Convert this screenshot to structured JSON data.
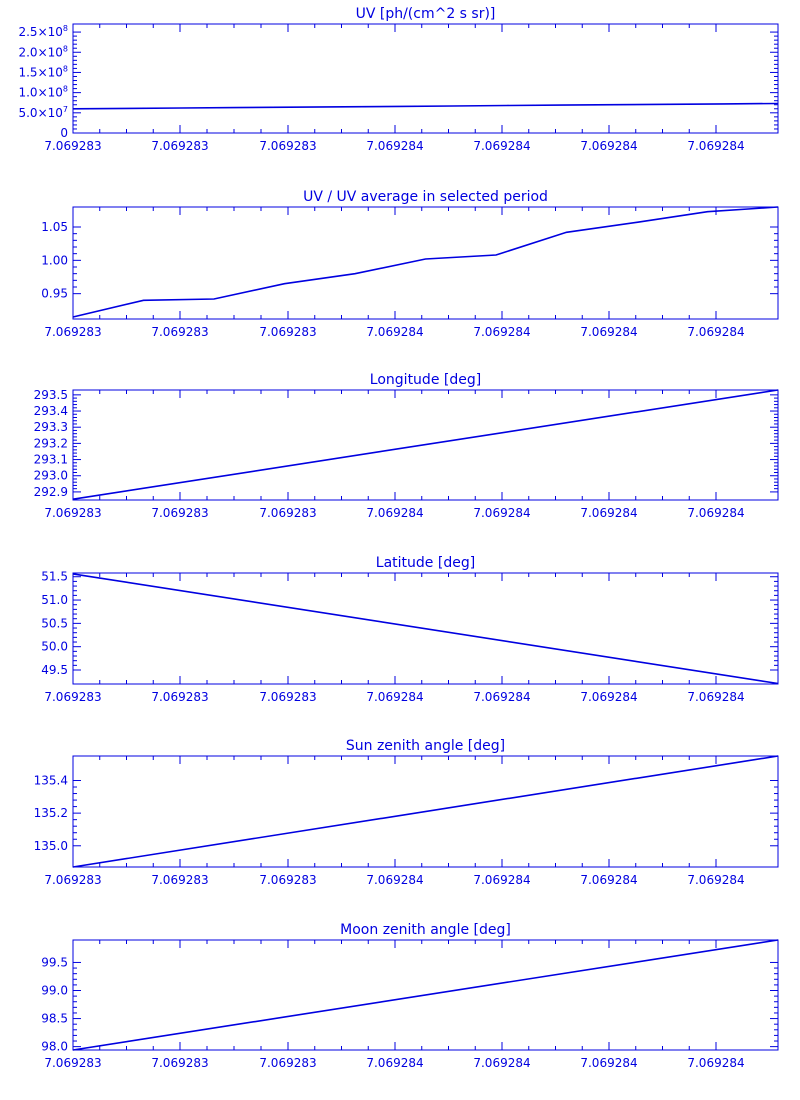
{
  "style": {
    "color": "#0000e0",
    "background": "#ffffff"
  },
  "chart_data": [
    {
      "type": "line",
      "title": "UV [ph/(cm^2 s sr)]",
      "x_ticks": [
        "7.069283",
        "7.069283",
        "7.069283",
        "7.069284",
        "7.069284",
        "7.069284",
        "7.069284"
      ],
      "y_tick_values": [
        0,
        50000000,
        100000000,
        150000000,
        200000000,
        250000000
      ],
      "y_tick_labels": [
        {
          "base": "0",
          "exp": ""
        },
        {
          "base": "5.0×10",
          "exp": "7"
        },
        {
          "base": "1.0×10",
          "exp": "8"
        },
        {
          "base": "1.5×10",
          "exp": "8"
        },
        {
          "base": "2.0×10",
          "exp": "8"
        },
        {
          "base": "2.5×10",
          "exp": "8"
        }
      ],
      "ylim": [
        0,
        270000000
      ],
      "grid": false,
      "y": [
        60000000,
        61000000,
        62000000,
        63000000,
        64000000,
        65000000,
        66000000,
        67000000,
        68000000,
        69000000,
        70000000,
        71000000,
        72000000,
        73000000
      ]
    },
    {
      "type": "line",
      "title": "UV / UV average in selected period",
      "x_ticks": [
        "7.069283",
        "7.069283",
        "7.069283",
        "7.069284",
        "7.069284",
        "7.069284",
        "7.069284"
      ],
      "y_tick_values": [
        0.95,
        1.0,
        1.05
      ],
      "y_tick_labels": [
        {
          "base": "0.95",
          "exp": ""
        },
        {
          "base": "1.00",
          "exp": ""
        },
        {
          "base": "1.05",
          "exp": ""
        }
      ],
      "ylim": [
        0.912,
        1.08
      ],
      "grid": false,
      "y": [
        0.915,
        0.94,
        0.942,
        0.965,
        0.98,
        1.002,
        1.008,
        1.042,
        1.057,
        1.073,
        1.08
      ]
    },
    {
      "type": "line",
      "title": "Longitude [deg]",
      "x_ticks": [
        "7.069283",
        "7.069283",
        "7.069283",
        "7.069284",
        "7.069284",
        "7.069284",
        "7.069284"
      ],
      "y_tick_values": [
        292.9,
        293.0,
        293.1,
        293.2,
        293.3,
        293.4,
        293.5
      ],
      "y_tick_labels": [
        {
          "base": "292.9",
          "exp": ""
        },
        {
          "base": "293.0",
          "exp": ""
        },
        {
          "base": "293.1",
          "exp": ""
        },
        {
          "base": "293.2",
          "exp": ""
        },
        {
          "base": "293.3",
          "exp": ""
        },
        {
          "base": "293.4",
          "exp": ""
        },
        {
          "base": "293.5",
          "exp": ""
        }
      ],
      "ylim": [
        292.85,
        293.53
      ],
      "grid": false,
      "y": [
        292.855,
        293.53
      ]
    },
    {
      "type": "line",
      "title": "Latitude [deg]",
      "x_ticks": [
        "7.069283",
        "7.069283",
        "7.069283",
        "7.069284",
        "7.069284",
        "7.069284",
        "7.069284"
      ],
      "y_tick_values": [
        49.5,
        50.0,
        50.5,
        51.0,
        51.5
      ],
      "y_tick_labels": [
        {
          "base": "49.5",
          "exp": ""
        },
        {
          "base": "50.0",
          "exp": ""
        },
        {
          "base": "50.5",
          "exp": ""
        },
        {
          "base": "51.0",
          "exp": ""
        },
        {
          "base": "51.5",
          "exp": ""
        }
      ],
      "ylim": [
        49.2,
        51.58
      ],
      "grid": false,
      "y": [
        51.56,
        49.21
      ]
    },
    {
      "type": "line",
      "title": "Sun zenith angle [deg]",
      "x_ticks": [
        "7.069283",
        "7.069283",
        "7.069283",
        "7.069284",
        "7.069284",
        "7.069284",
        "7.069284"
      ],
      "y_tick_values": [
        135.0,
        135.2,
        135.4
      ],
      "y_tick_labels": [
        {
          "base": "135.0",
          "exp": ""
        },
        {
          "base": "135.2",
          "exp": ""
        },
        {
          "base": "135.4",
          "exp": ""
        }
      ],
      "ylim": [
        134.87,
        135.55
      ],
      "grid": false,
      "y": [
        134.87,
        135.55
      ]
    },
    {
      "type": "line",
      "title": "Moon zenith angle [deg]",
      "x_ticks": [
        "7.069283",
        "7.069283",
        "7.069283",
        "7.069284",
        "7.069284",
        "7.069284",
        "7.069284"
      ],
      "y_tick_values": [
        98.0,
        98.5,
        99.0,
        99.5
      ],
      "y_tick_labels": [
        {
          "base": "98.0",
          "exp": ""
        },
        {
          "base": "98.5",
          "exp": ""
        },
        {
          "base": "99.0",
          "exp": ""
        },
        {
          "base": "99.5",
          "exp": ""
        }
      ],
      "ylim": [
        97.94,
        99.9
      ],
      "grid": false,
      "y": [
        97.94,
        99.9
      ]
    }
  ]
}
